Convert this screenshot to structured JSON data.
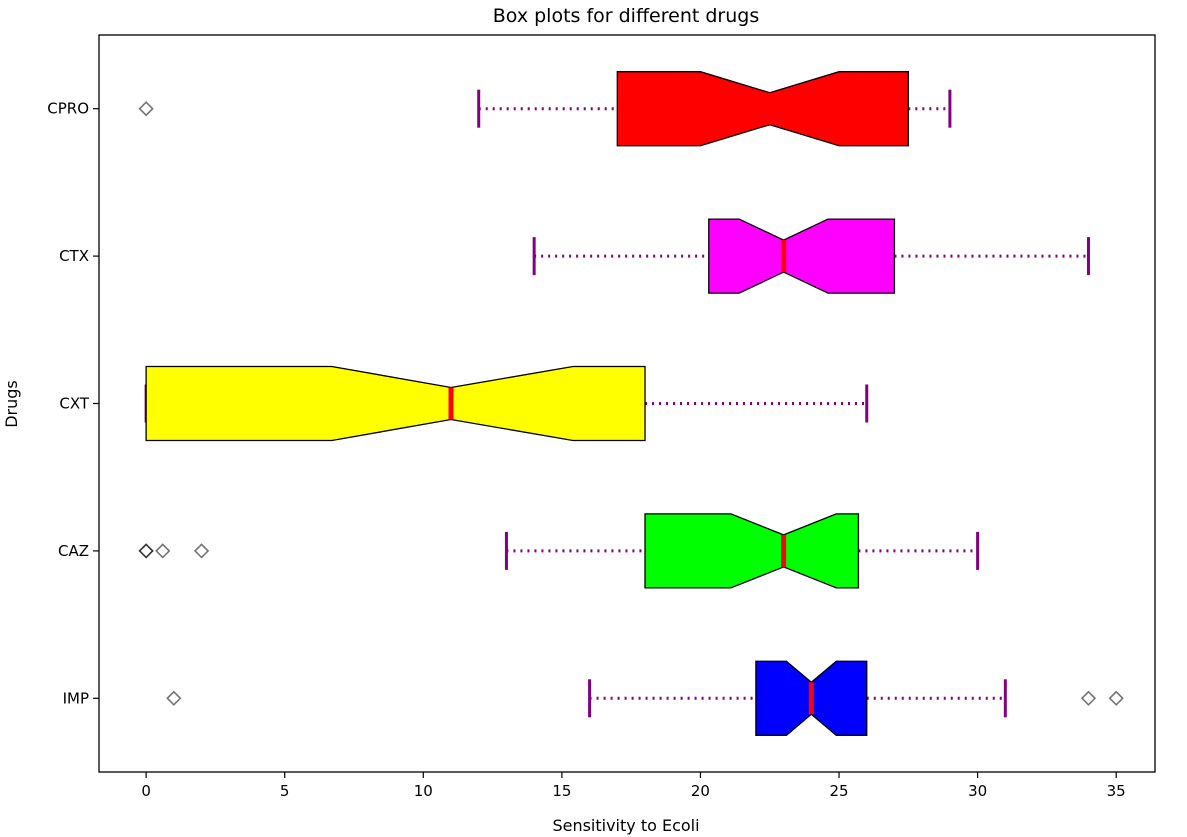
{
  "chart_data": {
    "type": "boxplot",
    "orientation": "horizontal",
    "notched": true,
    "title": "Box plots for different drugs",
    "xlabel": "Sensitivity to Ecoli",
    "ylabel": "Drugs",
    "xlim": [
      -1.7,
      36.4
    ],
    "x_ticks": [
      0,
      5,
      10,
      15,
      20,
      25,
      30,
      35
    ],
    "grid": false,
    "categories": [
      "CPRO",
      "CTX",
      "CXT",
      "CAZ",
      "IMP"
    ],
    "series": [
      {
        "name": "CPRO",
        "color": "#ff0000",
        "whisker_low": 12,
        "q1": 17,
        "median": 22.5,
        "q3": 27.5,
        "whisker_high": 29,
        "notch_low": 20,
        "notch_high": 25,
        "outliers": [
          0
        ]
      },
      {
        "name": "CTX",
        "color": "#ff00ff",
        "whisker_low": 14,
        "q1": 20.3,
        "median": 23,
        "q3": 27,
        "whisker_high": 34,
        "notch_low": 21.4,
        "notch_high": 24.6,
        "outliers": []
      },
      {
        "name": "CXT",
        "color": "#ffff00",
        "whisker_low": 0,
        "q1": 0,
        "median": 11,
        "q3": 18,
        "whisker_high": 26,
        "notch_low": 6.7,
        "notch_high": 15.4,
        "outliers": []
      },
      {
        "name": "CAZ",
        "color": "#00ff00",
        "whisker_low": 13,
        "q1": 18,
        "median": 23,
        "q3": 25.7,
        "whisker_high": 30,
        "notch_low": 21.1,
        "notch_high": 24.9,
        "outliers": [
          0,
          0,
          0.6,
          2
        ]
      },
      {
        "name": "IMP",
        "color": "#0000ff",
        "whisker_low": 16,
        "q1": 22,
        "median": 24,
        "q3": 26,
        "whisker_high": 31,
        "notch_low": 23.1,
        "notch_high": 24.9,
        "outliers": [
          1,
          34,
          35
        ]
      }
    ],
    "style": {
      "median_color": "#ff0000",
      "whisker_color": "#800080",
      "whisker_linestyle": "dotted",
      "outlier_marker": "diamond",
      "box_edge_color": "#000000"
    }
  }
}
